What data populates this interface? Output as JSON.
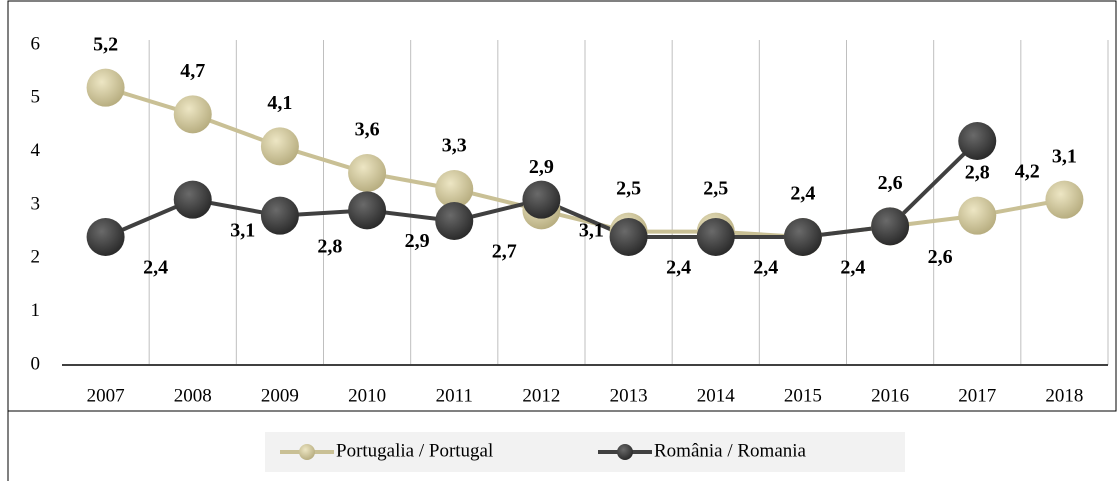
{
  "chart_data": {
    "type": "line",
    "categories": [
      "2007",
      "2008",
      "2009",
      "2010",
      "2011",
      "2012",
      "2013",
      "2014",
      "2015",
      "2016",
      "2017",
      "2018"
    ],
    "series": [
      {
        "name": "Portugalia / Portugal",
        "color": "#c9c095",
        "values": [
          5.2,
          4.7,
          4.1,
          3.6,
          3.3,
          2.9,
          2.5,
          2.5,
          2.4,
          2.6,
          2.8,
          3.1
        ],
        "value_labels": [
          "5,2",
          "4,7",
          "4,1",
          "3,6",
          "3,3",
          "2,9",
          "2,5",
          "2,5",
          "2,4",
          "2,6",
          "2,8",
          "3,1"
        ]
      },
      {
        "name": "România / Romania",
        "color": "#404040",
        "values": [
          2.4,
          3.1,
          2.8,
          2.9,
          2.7,
          3.1,
          2.4,
          2.4,
          2.4,
          2.6,
          4.2,
          null
        ],
        "value_labels": [
          "2,4",
          "3,1",
          "2,8",
          "2,9",
          "2,7",
          "3,1",
          "2,4",
          "2,4",
          "2,4",
          "2,6",
          "4,2",
          null
        ]
      }
    ],
    "ylim": [
      0,
      6
    ],
    "yticks": [
      0,
      1,
      2,
      3,
      4,
      5,
      6
    ],
    "grid": true,
    "legend": "bottom"
  }
}
